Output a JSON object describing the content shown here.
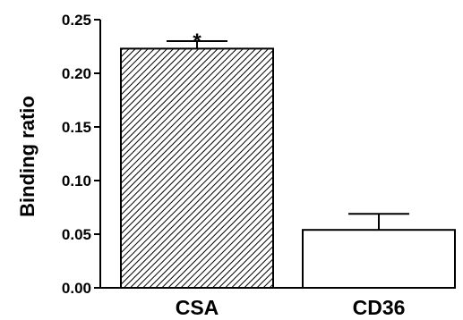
{
  "chart_data": {
    "type": "bar",
    "ylabel": "Binding ratio",
    "xlabel": "",
    "ylim": [
      0,
      0.25
    ],
    "yticks": [
      0.0,
      0.05,
      0.1,
      0.15,
      0.2,
      0.25
    ],
    "ytick_labels": [
      "0.00",
      "0.05",
      "0.10",
      "0.15",
      "0.20",
      "0.25"
    ],
    "categories": [
      "CSA",
      "CD36"
    ],
    "values": [
      0.223,
      0.054
    ],
    "errors": [
      0.007,
      0.015
    ],
    "annotations": [
      "*",
      ""
    ],
    "fills": [
      "hatched",
      "white"
    ],
    "colors": {
      "bar_outline": "#000000",
      "hatch": "#000000",
      "background": "#ffffff"
    },
    "grid": false,
    "legend": "none"
  }
}
